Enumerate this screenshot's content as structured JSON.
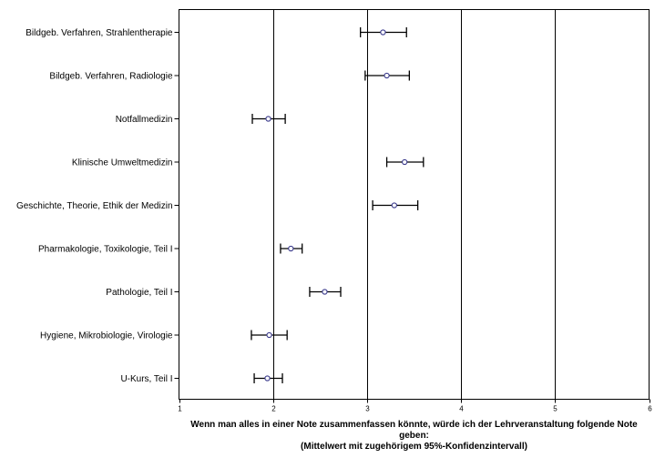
{
  "chart_data": {
    "type": "scatter",
    "subtype": "dot-plot with 95% confidence interval error bars",
    "orientation": "horizontal",
    "categories": [
      "Bildgeb. Verfahren, Strahlentherapie",
      "Bildgeb. Verfahren, Radiologie",
      "Notfallmedizin",
      "Klinische Umweltmedizin",
      "Geschichte, Theorie, Ethik der Medizin",
      "Pharmakologie, Toxikologie, Teil I",
      "Pathologie, Teil I",
      "Hygiene, Mikrobiologie, Virologie",
      "U-Kurs, Teil I"
    ],
    "series": [
      {
        "mean": [
          3.17,
          3.21,
          1.95,
          3.4,
          3.29,
          2.19,
          2.55,
          1.96,
          1.94
        ],
        "ci_low": [
          2.93,
          2.98,
          1.78,
          3.21,
          3.06,
          2.08,
          2.39,
          1.77,
          1.8
        ],
        "ci_high": [
          3.42,
          3.45,
          2.13,
          3.6,
          3.54,
          2.31,
          2.72,
          2.15,
          2.1
        ]
      }
    ],
    "xlim": [
      1,
      6
    ],
    "xticks": [
      "1",
      "2",
      "3",
      "4",
      "5",
      "6"
    ],
    "xlabel_lines": [
      "Wenn man alles in einer Note zusammenfassen könnte, würde ich der Lehrveranstaltung folgende Note",
      "geben:",
      "(Mittelwert mit zugehörigem 95%-Konfidenzintervall)"
    ],
    "grid": "vertical lines at integer ticks",
    "colors": {
      "marker": "#3a3a8c",
      "errorbar": "#000000",
      "grid": "#000000"
    }
  }
}
